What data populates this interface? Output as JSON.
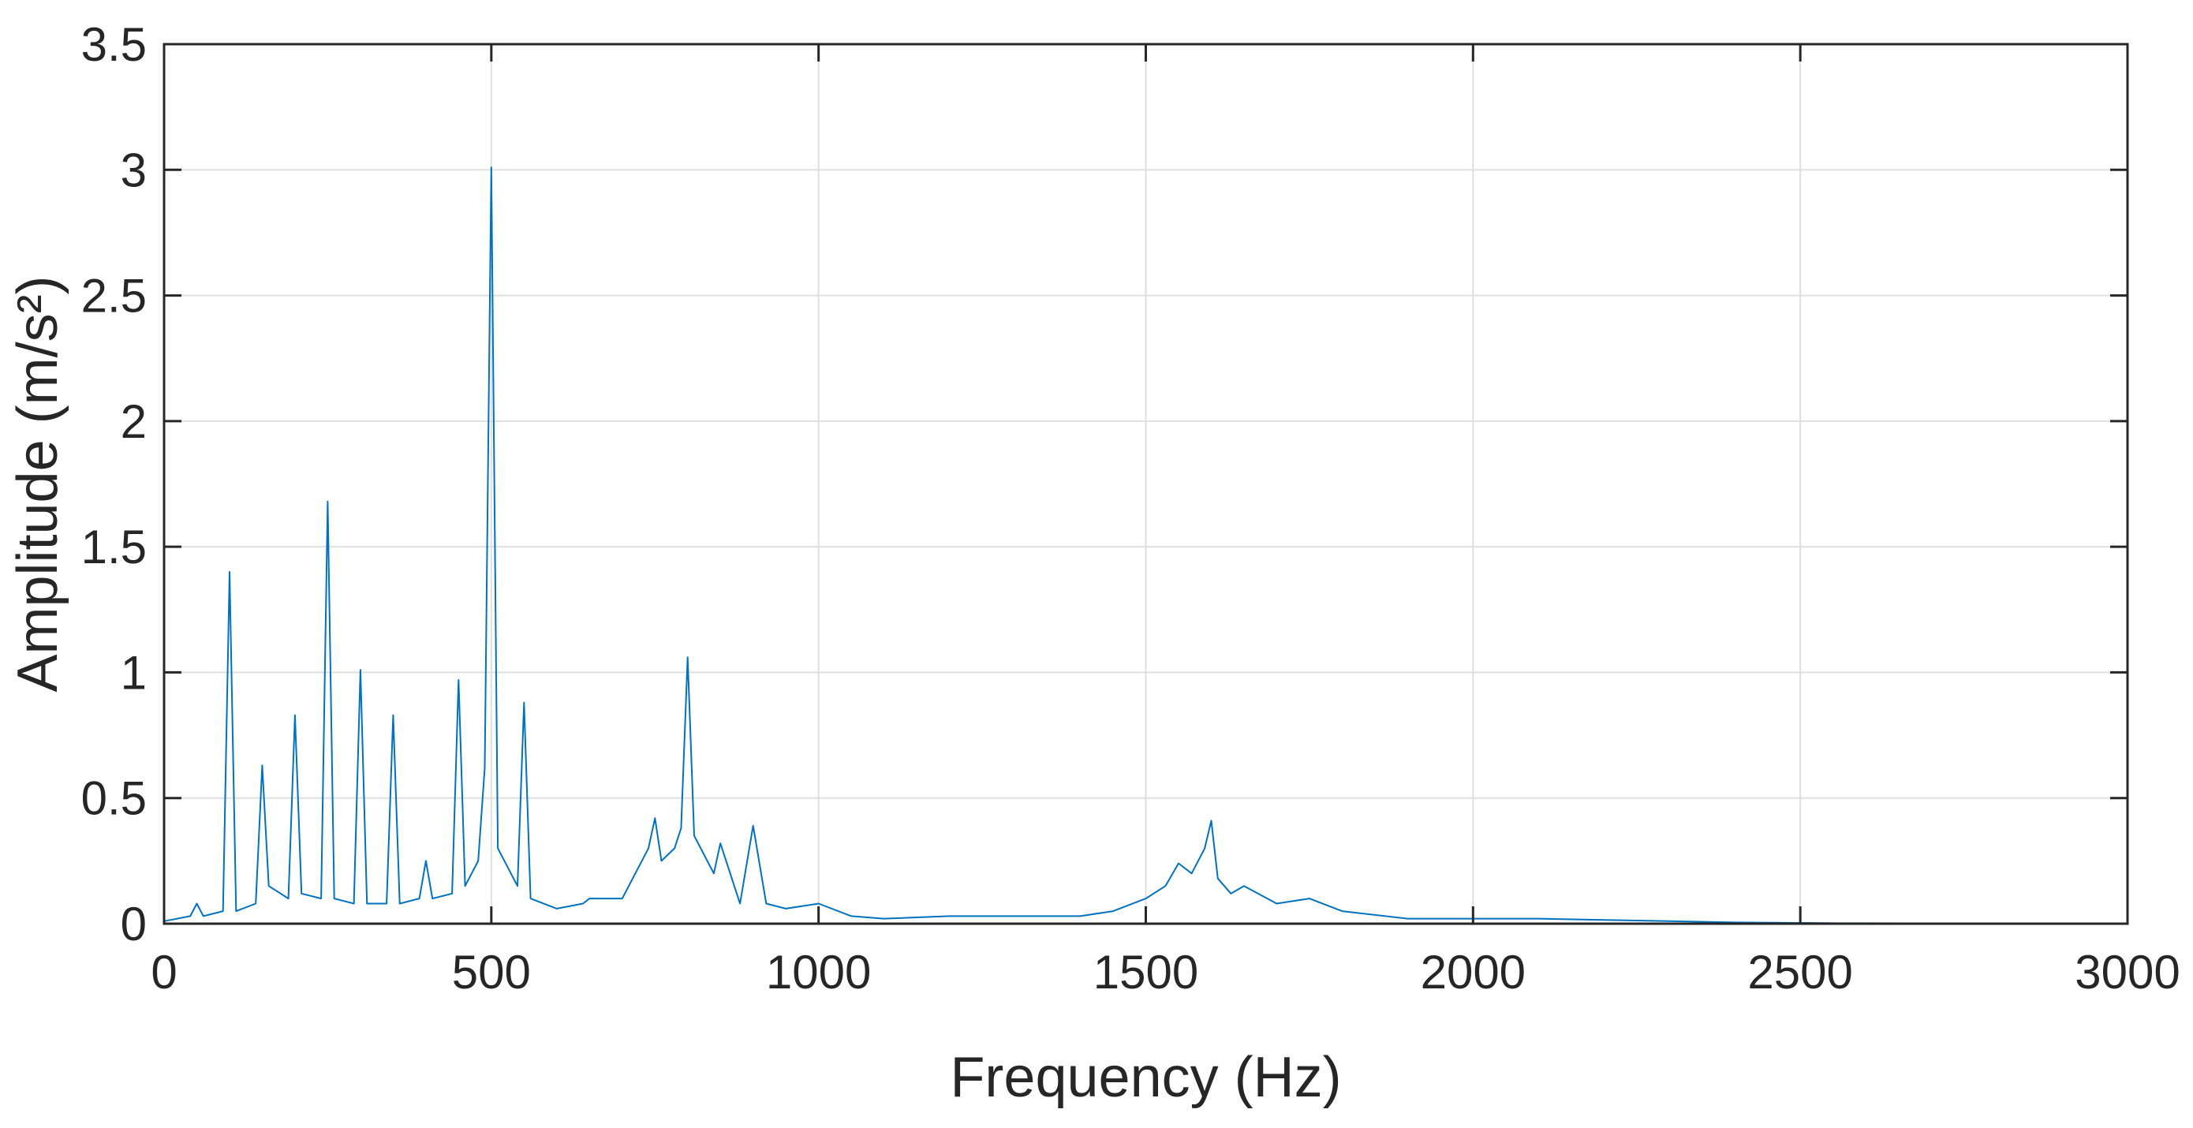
{
  "chart_data": {
    "type": "line",
    "xlabel": "Frequency (Hz)",
    "ylabel": "Amplitude (m/s²)",
    "xlim": [
      0,
      3000
    ],
    "ylim": [
      0,
      3.5
    ],
    "xticks": [
      0,
      500,
      1000,
      1500,
      2000,
      2500,
      3000
    ],
    "xtick_labels": [
      "0",
      "500",
      "1000",
      "1500",
      "2000",
      "2500",
      "3000"
    ],
    "yticks": [
      0,
      0.5,
      1,
      1.5,
      2,
      2.5,
      3,
      3.5
    ],
    "ytick_labels": [
      "0",
      "0.5",
      "1",
      "1.5",
      "2",
      "2.5",
      "3",
      "3.5"
    ],
    "grid": true,
    "line_color": "#0072BD",
    "series": [
      {
        "x": [
          0,
          40,
          50,
          60,
          90,
          100,
          110,
          140,
          150,
          160,
          190,
          200,
          210,
          240,
          250,
          260,
          290,
          300,
          310,
          340,
          350,
          360,
          390,
          400,
          410,
          440,
          450,
          460,
          480,
          490,
          500,
          510,
          530,
          540,
          550,
          560,
          600,
          640,
          650,
          700,
          740,
          750,
          760,
          780,
          790,
          800,
          810,
          840,
          850,
          880,
          900,
          920,
          950,
          1000,
          1050,
          1100,
          1200,
          1300,
          1400,
          1450,
          1500,
          1530,
          1550,
          1570,
          1590,
          1600,
          1610,
          1630,
          1650,
          1700,
          1750,
          1800,
          1900,
          2000,
          2100,
          2200,
          2300,
          2400,
          2500,
          2560,
          2600,
          3000
        ],
        "y": [
          0.01,
          0.03,
          0.08,
          0.03,
          0.05,
          1.4,
          0.05,
          0.08,
          0.63,
          0.15,
          0.1,
          0.83,
          0.12,
          0.1,
          1.68,
          0.1,
          0.08,
          1.01,
          0.08,
          0.08,
          0.83,
          0.08,
          0.1,
          0.25,
          0.1,
          0.12,
          0.97,
          0.15,
          0.25,
          0.62,
          3.01,
          0.3,
          0.2,
          0.15,
          0.88,
          0.1,
          0.06,
          0.08,
          0.1,
          0.1,
          0.3,
          0.42,
          0.25,
          0.3,
          0.38,
          1.06,
          0.35,
          0.2,
          0.32,
          0.08,
          0.39,
          0.08,
          0.06,
          0.08,
          0.03,
          0.02,
          0.03,
          0.03,
          0.03,
          0.05,
          0.1,
          0.15,
          0.24,
          0.2,
          0.3,
          0.41,
          0.18,
          0.12,
          0.15,
          0.08,
          0.1,
          0.05,
          0.02,
          0.02,
          0.02,
          0.015,
          0.01,
          0.005,
          0.003,
          0.002,
          0.002,
          0.001
        ]
      }
    ]
  }
}
